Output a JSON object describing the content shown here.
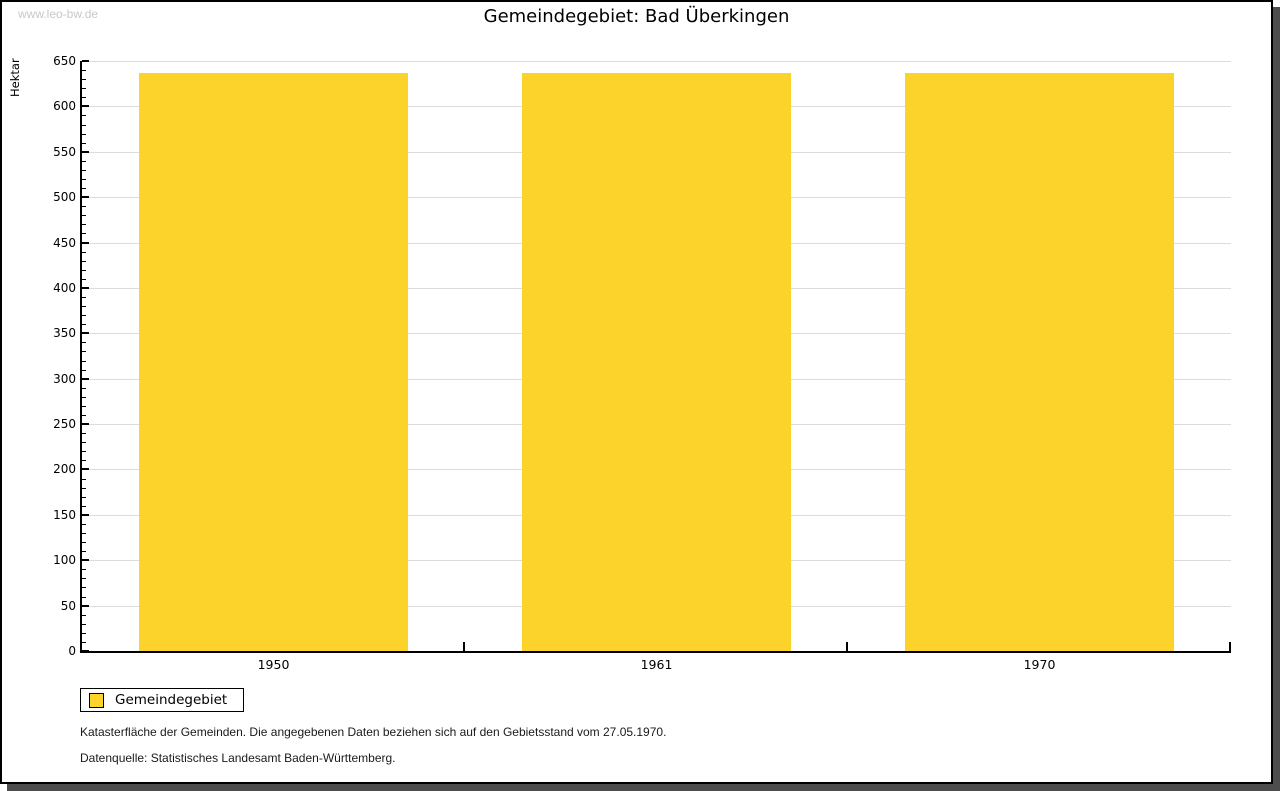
{
  "watermark": "www.leo-bw.de",
  "chart_data": {
    "type": "bar",
    "title": "Gemeindegebiet: Bad Überkingen",
    "ylabel": "Hektar",
    "xlabel": "",
    "categories": [
      "1950",
      "1961",
      "1970"
    ],
    "series": [
      {
        "name": "Gemeindegebiet",
        "color": "#fcd32b",
        "values": [
          637,
          637,
          637
        ]
      }
    ],
    "ylim": [
      0,
      650
    ],
    "ytick_step": 50,
    "yminor_step": 10,
    "grid": true,
    "legend_position": "bottom-left"
  },
  "legend": {
    "label": "Gemeindegebiet",
    "swatch_color": "#fcd32b"
  },
  "footer": {
    "note": "Katasterfläche der Gemeinden. Die angegebenen Daten beziehen sich auf den Gebietsstand vom 27.05.1970.",
    "source": "Datenquelle: Statistisches Landesamt Baden-Württemberg."
  },
  "colors": {
    "bar": "#fcd32b",
    "grid": "#dcdcdc",
    "axis": "#000000",
    "watermark": "#c8c8c8",
    "frame_shadow": "#4d4d4d",
    "background": "#ffffff"
  }
}
